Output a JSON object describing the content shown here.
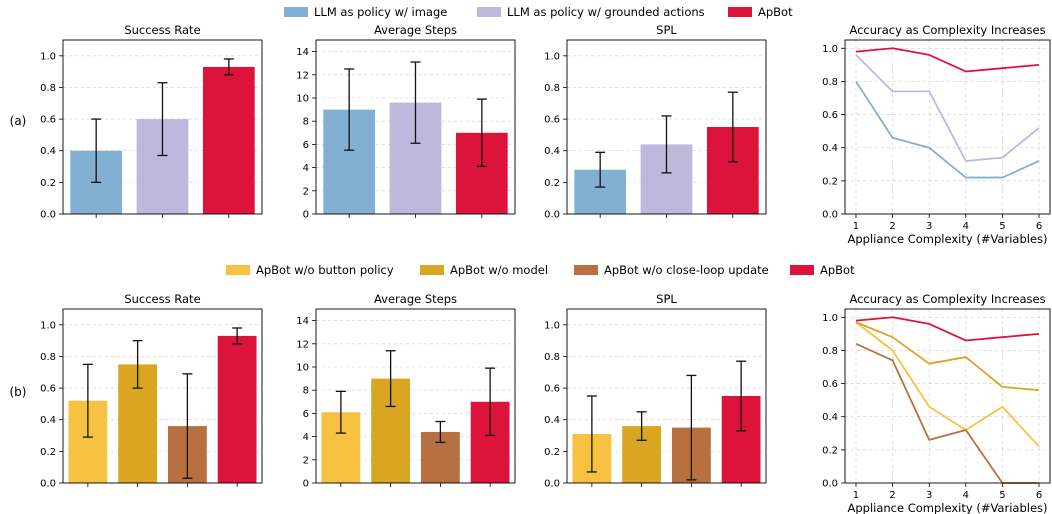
{
  "row_labels": [
    "(a)",
    "(b)"
  ],
  "legends": [
    {
      "entries": [
        {
          "label": "LLM as policy w/ image",
          "color": "#82b0d2"
        },
        {
          "label": "LLM as policy w/ grounded actions",
          "color": "#beb8dc"
        },
        {
          "label": "ApBot",
          "color": "#dc143c"
        }
      ]
    },
    {
      "entries": [
        {
          "label": "ApBot w/o button policy",
          "color": "#f7c242"
        },
        {
          "label": "ApBot w/o model",
          "color": "#daa520"
        },
        {
          "label": "ApBot w/o close-loop update",
          "color": "#b87040"
        },
        {
          "label": "ApBot",
          "color": "#dc143c"
        }
      ]
    }
  ],
  "chart_data": [
    {
      "type": "bar",
      "row": 0,
      "title": "Success Rate",
      "ylim": [
        0,
        1.1
      ],
      "yticks": [
        0.0,
        0.2,
        0.4,
        0.6,
        0.8,
        1.0
      ],
      "ytick_labels": [
        "0.0",
        "0.2",
        "0.4",
        "0.6",
        "0.8",
        "1.0"
      ],
      "values": [
        0.4,
        0.6,
        0.93
      ],
      "errors": [
        0.2,
        0.23,
        0.05
      ],
      "colors": [
        "#82b0d2",
        "#beb8dc",
        "#dc143c"
      ]
    },
    {
      "type": "bar",
      "row": 0,
      "title": "Average Steps",
      "ylim": [
        0,
        15
      ],
      "yticks": [
        0,
        2,
        4,
        6,
        8,
        10,
        12,
        14
      ],
      "ytick_labels": [
        "0",
        "2",
        "4",
        "6",
        "8",
        "10",
        "12",
        "14"
      ],
      "values": [
        9.0,
        9.6,
        7.0
      ],
      "errors": [
        3.5,
        3.5,
        2.9
      ],
      "colors": [
        "#82b0d2",
        "#beb8dc",
        "#dc143c"
      ]
    },
    {
      "type": "bar",
      "row": 0,
      "title": "SPL",
      "ylim": [
        0,
        1.1
      ],
      "yticks": [
        0.0,
        0.2,
        0.4,
        0.6,
        0.8,
        1.0
      ],
      "ytick_labels": [
        "0.0",
        "0.2",
        "0.4",
        "0.6",
        "0.8",
        "1.0"
      ],
      "values": [
        0.28,
        0.44,
        0.55
      ],
      "errors": [
        0.11,
        0.18,
        0.22
      ],
      "colors": [
        "#82b0d2",
        "#beb8dc",
        "#dc143c"
      ]
    },
    {
      "type": "line",
      "row": 0,
      "title": "Accuracy as Complexity Increases",
      "xlabel": "Appliance Complexity (#Variables)",
      "ylim": [
        0,
        1.05
      ],
      "xlim": [
        0.7,
        6.3
      ],
      "x": [
        1,
        2,
        3,
        4,
        5,
        6
      ],
      "xtick_labels": [
        "1",
        "2",
        "3",
        "4",
        "5",
        "6"
      ],
      "yticks": [
        0.0,
        0.2,
        0.4,
        0.6,
        0.8,
        1.0
      ],
      "ytick_labels": [
        "0.0",
        "0.2",
        "0.4",
        "0.6",
        "0.8",
        "1.0"
      ],
      "series": [
        {
          "values": [
            0.8,
            0.46,
            0.4,
            0.22,
            0.22,
            0.32
          ],
          "color": "#82b0d2"
        },
        {
          "values": [
            0.96,
            0.74,
            0.74,
            0.32,
            0.34,
            0.52
          ],
          "color": "#beb8dc"
        },
        {
          "values": [
            0.98,
            1.0,
            0.96,
            0.86,
            0.88,
            0.9
          ],
          "color": "#dc143c"
        }
      ]
    },
    {
      "type": "bar",
      "row": 1,
      "title": "Success Rate",
      "ylim": [
        0,
        1.1
      ],
      "yticks": [
        0.0,
        0.2,
        0.4,
        0.6,
        0.8,
        1.0
      ],
      "ytick_labels": [
        "0.0",
        "0.2",
        "0.4",
        "0.6",
        "0.8",
        "1.0"
      ],
      "values": [
        0.52,
        0.75,
        0.36,
        0.93
      ],
      "errors": [
        0.23,
        0.15,
        0.33,
        0.05
      ],
      "colors": [
        "#f7c242",
        "#daa520",
        "#b87040",
        "#dc143c"
      ]
    },
    {
      "type": "bar",
      "row": 1,
      "title": "Average Steps",
      "ylim": [
        0,
        15
      ],
      "yticks": [
        0,
        2,
        4,
        6,
        8,
        10,
        12,
        14
      ],
      "ytick_labels": [
        "0",
        "2",
        "4",
        "6",
        "8",
        "10",
        "12",
        "14"
      ],
      "values": [
        6.1,
        9.0,
        4.4,
        7.0
      ],
      "errors": [
        1.8,
        2.4,
        0.9,
        2.9
      ],
      "colors": [
        "#f7c242",
        "#daa520",
        "#b87040",
        "#dc143c"
      ]
    },
    {
      "type": "bar",
      "row": 1,
      "title": "SPL",
      "ylim": [
        0,
        1.1
      ],
      "yticks": [
        0.0,
        0.2,
        0.4,
        0.6,
        0.8,
        1.0
      ],
      "ytick_labels": [
        "0.0",
        "0.2",
        "0.4",
        "0.6",
        "0.8",
        "1.0"
      ],
      "values": [
        0.31,
        0.36,
        0.35,
        0.55
      ],
      "errors": [
        0.24,
        0.09,
        0.33,
        0.22
      ],
      "colors": [
        "#f7c242",
        "#daa520",
        "#b87040",
        "#dc143c"
      ]
    },
    {
      "type": "line",
      "row": 1,
      "title": "Accuracy as Complexity Increases",
      "xlabel": "Appliance Complexity (#Variables)",
      "ylim": [
        0,
        1.05
      ],
      "xlim": [
        0.7,
        6.3
      ],
      "x": [
        1,
        2,
        3,
        4,
        5,
        6
      ],
      "xtick_labels": [
        "1",
        "2",
        "3",
        "4",
        "5",
        "6"
      ],
      "yticks": [
        0.0,
        0.2,
        0.4,
        0.6,
        0.8,
        1.0
      ],
      "ytick_labels": [
        "0.0",
        "0.2",
        "0.4",
        "0.6",
        "0.8",
        "1.0"
      ],
      "series": [
        {
          "values": [
            0.97,
            0.8,
            0.46,
            0.32,
            0.46,
            0.22
          ],
          "color": "#f7c242"
        },
        {
          "values": [
            0.97,
            0.88,
            0.72,
            0.76,
            0.58,
            0.56
          ],
          "color": "#daa520"
        },
        {
          "values": [
            0.84,
            0.74,
            0.26,
            0.32,
            0.0,
            0.0
          ],
          "color": "#b87040"
        },
        {
          "values": [
            0.98,
            1.0,
            0.96,
            0.86,
            0.88,
            0.9
          ],
          "color": "#dc143c"
        }
      ]
    }
  ]
}
